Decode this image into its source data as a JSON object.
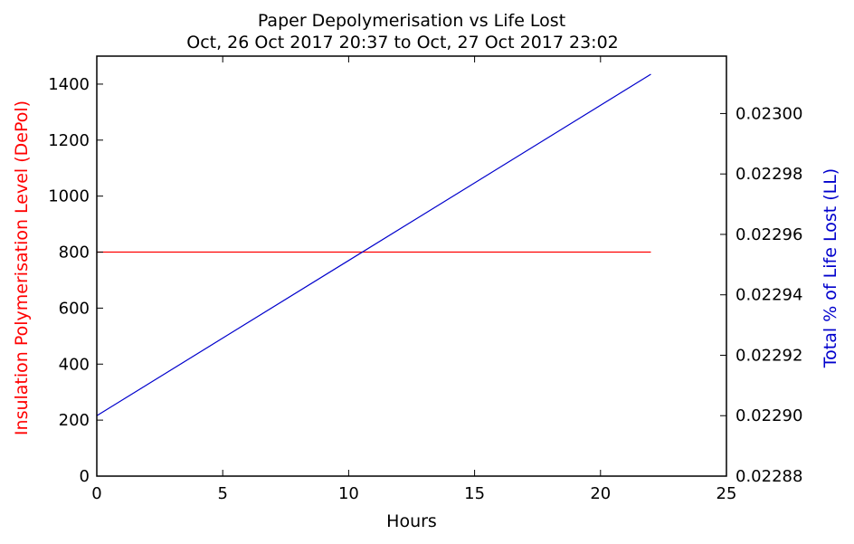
{
  "colors": {
    "depol": "#ff0000",
    "life_lost": "#0000cc",
    "axes": "#000000",
    "background": "#ffffff"
  },
  "chart_data": {
    "type": "line",
    "title": "Paper Depolymerisation vs Life Lost",
    "subtitle": "Oct, 26 Oct 2017 20:37 to Oct, 27 Oct 2017 23:02",
    "xlabel": "Hours",
    "ylabel_left": "Insulation Polymerisation Level (DePol)",
    "ylabel_right": "Total % of Life Lost (LL)",
    "xlim": [
      0,
      25
    ],
    "ylim_left": [
      0,
      1500
    ],
    "ylim_right": [
      0.02288,
      0.023019
    ],
    "x_ticks": [
      "0",
      "5",
      "10",
      "15",
      "20",
      "25"
    ],
    "y_left_ticks": [
      "0",
      "200",
      "400",
      "600",
      "800",
      "1000",
      "1200",
      "1400"
    ],
    "y_right_ticks": [
      "0.02288",
      "0.02290",
      "0.02292",
      "0.02294",
      "0.02296",
      "0.02298",
      "0.02300"
    ],
    "grid": false,
    "series": [
      {
        "axis": "left",
        "color": "#ff0000",
        "x": [
          0,
          22
        ],
        "y": [
          800,
          800
        ]
      },
      {
        "axis": "right",
        "color": "#0000cc",
        "x": [
          0,
          22
        ],
        "y": [
          0.0229,
          0.023013
        ]
      }
    ]
  }
}
